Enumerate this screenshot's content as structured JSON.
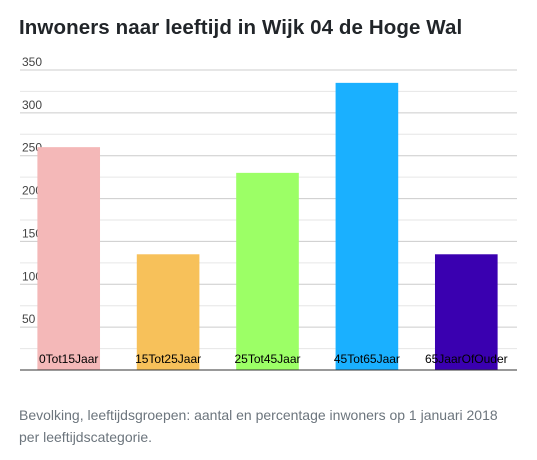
{
  "title": "Inwoners naar leeftijd in Wijk 04 de Hoge Wal",
  "caption": "Bevolking, leeftijdsgroepen: aantal en percentage inwoners op 1 januari 2018 per leeftijdscategorie.",
  "chart_data": {
    "type": "bar",
    "categories": [
      "0Tot15Jaar",
      "15Tot25Jaar",
      "25Tot45Jaar",
      "45Tot65Jaar",
      "65JaarOfOuder"
    ],
    "values": [
      260,
      135,
      230,
      335,
      135
    ],
    "colors": [
      "#f4b8b8",
      "#f7c15a",
      "#9cff66",
      "#1ab0ff",
      "#3a00b0"
    ],
    "yticks": [
      50,
      100,
      150,
      200,
      250,
      300,
      350
    ],
    "ylim": [
      0,
      350
    ],
    "grid": true,
    "legend": "none",
    "xlabel": "",
    "ylabel": ""
  }
}
